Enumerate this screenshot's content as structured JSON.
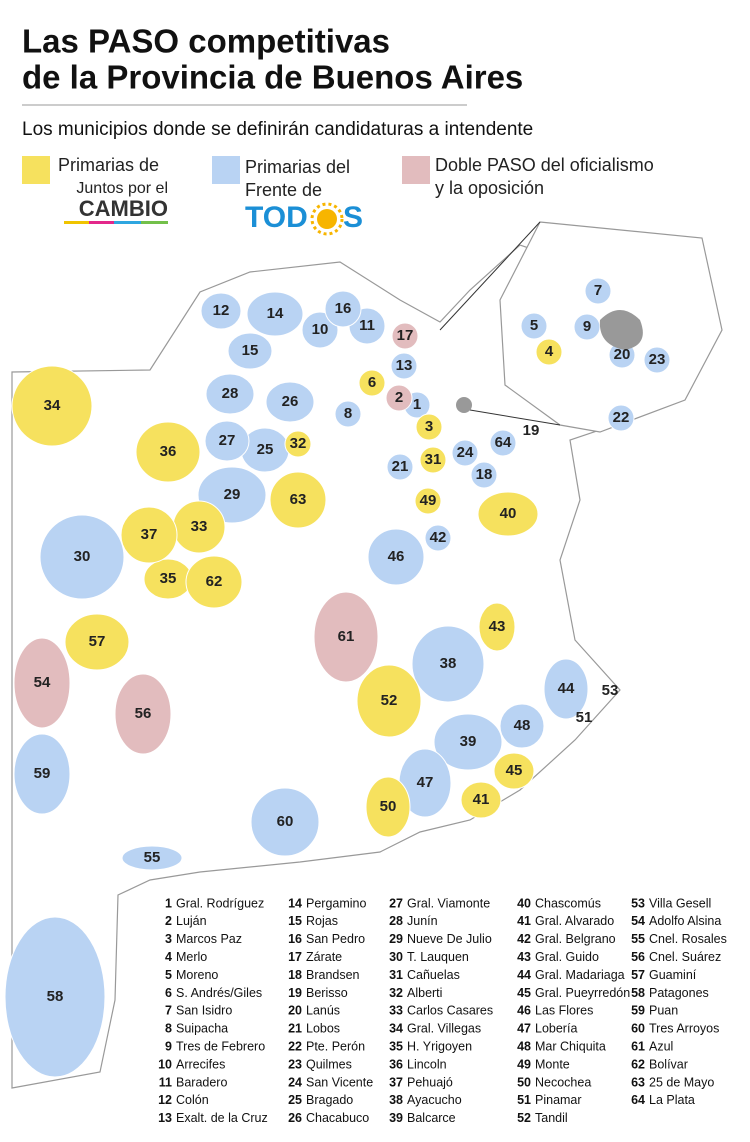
{
  "header": {
    "title_lines": [
      "Las PASO competitivas",
      "de la Provincia de Buenos Aires"
    ],
    "subtitle": "Los municipios donde se definirán candidaturas a intendente"
  },
  "legend": [
    {
      "label_lines": [
        "Primarias de"
      ],
      "logo_lines": [
        "Juntos por el",
        "CAMBIO"
      ],
      "color": "#f6e15e"
    },
    {
      "label_lines": [
        "Primarias del",
        "Frente de"
      ],
      "logo_parts": [
        "TOD",
        "S"
      ],
      "color": "#b9d3f3"
    },
    {
      "label_lines": [
        "Doble PASO del oficialismo",
        "y la oposición"
      ],
      "color": "#e2bcbe"
    }
  ],
  "municipalities": [
    {
      "number": 1,
      "name": "Gral. Rodríguez",
      "color": "#b9d3f3"
    },
    {
      "number": 2,
      "name": "Luján",
      "color": "#e2bcbe"
    },
    {
      "number": 3,
      "name": "Marcos Paz",
      "color": "#f6e15e"
    },
    {
      "number": 4,
      "name": "Merlo",
      "color": "#f6e15e"
    },
    {
      "number": 5,
      "name": "Moreno",
      "color": "#b9d3f3"
    },
    {
      "number": 6,
      "name": "S. Andrés/Giles",
      "color": "#f6e15e"
    },
    {
      "number": 7,
      "name": "San Isidro",
      "color": "#b9d3f3"
    },
    {
      "number": 8,
      "name": "Suipacha",
      "color": "#b9d3f3"
    },
    {
      "number": 9,
      "name": "Tres de Febrero",
      "color": "#b9d3f3"
    },
    {
      "number": 10,
      "name": "Arrecifes",
      "color": "#b9d3f3"
    },
    {
      "number": 11,
      "name": "Baradero",
      "color": "#b9d3f3"
    },
    {
      "number": 12,
      "name": "Colón",
      "color": "#b9d3f3"
    },
    {
      "number": 13,
      "name": "Exalt. de la Cruz",
      "color": "#b9d3f3"
    },
    {
      "number": 14,
      "name": "Pergamino",
      "color": "#b9d3f3"
    },
    {
      "number": 15,
      "name": "Rojas",
      "color": "#b9d3f3"
    },
    {
      "number": 16,
      "name": "San Pedro",
      "color": "#b9d3f3"
    },
    {
      "number": 17,
      "name": "Zárate",
      "color": "#e2bcbe"
    },
    {
      "number": 18,
      "name": "Brandsen",
      "color": "#b9d3f3"
    },
    {
      "number": 19,
      "name": "Berisso",
      "color": "#b9d3f3"
    },
    {
      "number": 20,
      "name": "Lanús",
      "color": "#b9d3f3"
    },
    {
      "number": 21,
      "name": "Lobos",
      "color": "#b9d3f3"
    },
    {
      "number": 22,
      "name": "Pte. Perón",
      "color": "#b9d3f3"
    },
    {
      "number": 23,
      "name": "Quilmes",
      "color": "#b9d3f3"
    },
    {
      "number": 24,
      "name": "San Vicente",
      "color": "#b9d3f3"
    },
    {
      "number": 25,
      "name": "Bragado",
      "color": "#b9d3f3"
    },
    {
      "number": 26,
      "name": "Chacabuco",
      "color": "#b9d3f3"
    },
    {
      "number": 27,
      "name": "Gral. Viamonte",
      "color": "#b9d3f3"
    },
    {
      "number": 28,
      "name": "Junín",
      "color": "#b9d3f3"
    },
    {
      "number": 29,
      "name": "Nueve De Julio",
      "color": "#b9d3f3"
    },
    {
      "number": 30,
      "name": "T. Lauquen",
      "color": "#b9d3f3"
    },
    {
      "number": 31,
      "name": "Cañuelas",
      "color": "#f6e15e"
    },
    {
      "number": 32,
      "name": "Alberti",
      "color": "#f6e15e"
    },
    {
      "number": 33,
      "name": "Carlos Casares",
      "color": "#f6e15e"
    },
    {
      "number": 34,
      "name": "Gral. Villegas",
      "color": "#f6e15e"
    },
    {
      "number": 35,
      "name": "H. Yrigoyen",
      "color": "#f6e15e"
    },
    {
      "number": 36,
      "name": "Lincoln",
      "color": "#f6e15e"
    },
    {
      "number": 37,
      "name": "Pehuajó",
      "color": "#f6e15e"
    },
    {
      "number": 38,
      "name": "Ayacucho",
      "color": "#b9d3f3"
    },
    {
      "number": 39,
      "name": "Balcarce",
      "color": "#b9d3f3"
    },
    {
      "number": 40,
      "name": "Chascomús",
      "color": "#f6e15e"
    },
    {
      "number": 41,
      "name": "Gral. Alvarado",
      "color": "#f6e15e"
    },
    {
      "number": 42,
      "name": "Gral. Belgrano",
      "color": "#b9d3f3"
    },
    {
      "number": 43,
      "name": "Gral. Guido",
      "color": "#f6e15e"
    },
    {
      "number": 44,
      "name": "Gral. Madariaga",
      "color": "#b9d3f3"
    },
    {
      "number": 45,
      "name": "Gral. Pueyrredón",
      "color": "#f6e15e"
    },
    {
      "number": 46,
      "name": "Las Flores",
      "color": "#b9d3f3"
    },
    {
      "number": 47,
      "name": "Lobería",
      "color": "#b9d3f3"
    },
    {
      "number": 48,
      "name": "Mar Chiquita",
      "color": "#b9d3f3"
    },
    {
      "number": 49,
      "name": "Monte",
      "color": "#f6e15e"
    },
    {
      "number": 50,
      "name": "Necochea",
      "color": "#f6e15e"
    },
    {
      "number": 51,
      "name": "Pinamar",
      "color": "#b9d3f3"
    },
    {
      "number": 52,
      "name": "Tandil",
      "color": "#f6e15e"
    },
    {
      "number": 53,
      "name": "Villa Gesell",
      "color": "#f6e15e"
    },
    {
      "number": 54,
      "name": "Adolfo Alsina",
      "color": "#e2bcbe"
    },
    {
      "number": 55,
      "name": "Cnel. Rosales",
      "color": "#b9d3f3"
    },
    {
      "number": 56,
      "name": "Cnel. Suárez",
      "color": "#e2bcbe"
    },
    {
      "number": 57,
      "name": "Guaminí",
      "color": "#f6e15e"
    },
    {
      "number": 58,
      "name": "Patagones",
      "color": "#b9d3f3"
    },
    {
      "number": 59,
      "name": "Puan",
      "color": "#b9d3f3"
    },
    {
      "number": 60,
      "name": "Tres Arroyos",
      "color": "#b9d3f3"
    },
    {
      "number": 61,
      "name": "Azul",
      "color": "#e2bcbe"
    },
    {
      "number": 62,
      "name": "Bolívar",
      "color": "#f6e15e"
    },
    {
      "number": 63,
      "name": "25 de Mayo",
      "color": "#f6e15e"
    },
    {
      "number": 64,
      "name": "La Plata",
      "color": "#b9d3f3"
    }
  ]
}
